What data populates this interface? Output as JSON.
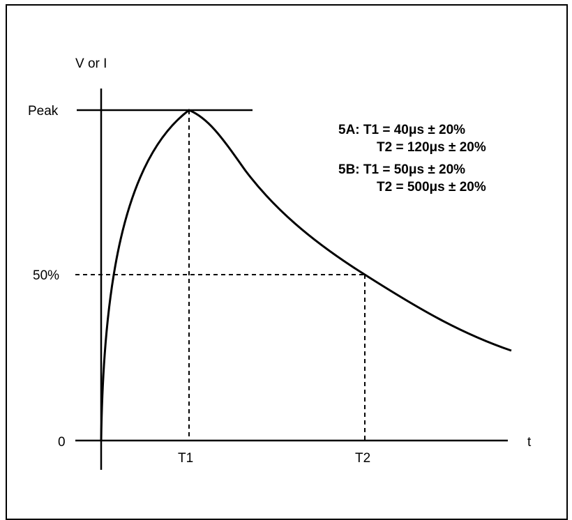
{
  "diagram": {
    "y_axis_label": "V or I",
    "x_axis_label": "t",
    "y_ticks": {
      "peak": "Peak",
      "half": "50%",
      "zero": "0"
    },
    "x_ticks": {
      "t1": "T1",
      "t2": "T2"
    },
    "notes": [
      "5A: T1 = 40μs ± 20%",
      "T2 = 120μs ± 20%",
      "5B: T1 = 50μs ± 20%",
      "T2 = 500μs ± 20%"
    ]
  },
  "colors": {
    "line": "#000000",
    "background": "#ffffff"
  }
}
